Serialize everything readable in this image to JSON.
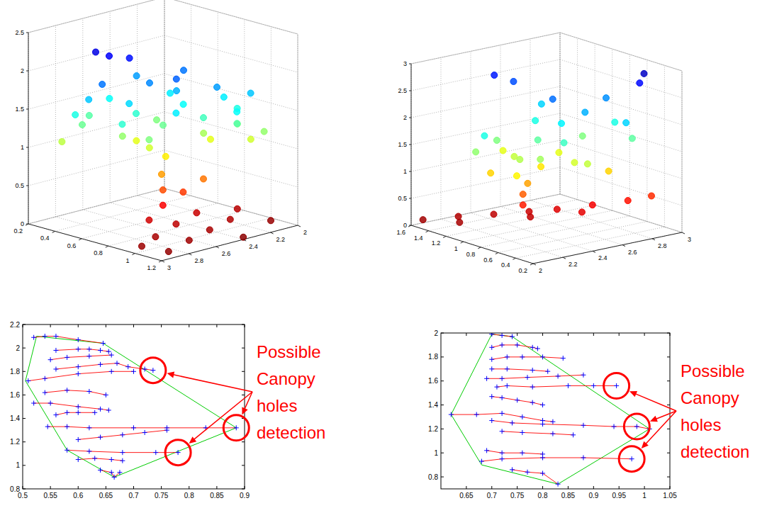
{
  "chart_data": [
    {
      "type": "scatter3d",
      "marker": "o",
      "grid": true,
      "xlim": [
        0.2,
        1.2
      ],
      "ylim": [
        2,
        3
      ],
      "zlim": [
        0,
        2.5
      ],
      "xticks": [
        0.2,
        0.4,
        0.6,
        0.8,
        1,
        1.2
      ],
      "yticks": [
        2,
        2.2,
        2.4,
        2.6,
        2.8,
        3
      ],
      "zticks": [
        0,
        0.5,
        1,
        1.5,
        2,
        2.5
      ],
      "x": [
        1.15,
        1.1,
        1.05,
        1.0,
        1.1,
        0.95,
        0.9,
        0.85,
        0.9,
        1.2,
        1.0,
        0.8,
        0.75,
        0.75,
        0.74,
        0.72,
        0.8,
        0.85,
        0.45,
        0.5,
        0.55,
        0.35,
        0.4,
        0.45,
        0.5,
        0.55,
        0.6,
        0.6,
        0.65,
        0.65,
        0.7,
        0.7,
        0.75,
        0.75,
        0.8,
        0.8,
        0.85,
        0.85,
        0.9,
        0.9,
        0.95,
        0.95,
        1.0,
        1.0,
        1.05,
        0.5,
        0.55,
        0.6,
        0.4,
        0.45,
        0.7,
        0.8,
        0.9,
        0.65,
        1.05,
        0.35,
        0.75
      ],
      "y": [
        2.9,
        2.7,
        2.5,
        2.3,
        2.1,
        2.8,
        2.6,
        2.4,
        2.15,
        2.4,
        2.95,
        2.7,
        2.55,
        2.55,
        2.55,
        2.5,
        2.45,
        2.35,
        2.75,
        2.7,
        2.6,
        2.9,
        2.8,
        2.9,
        2.85,
        2.8,
        2.7,
        2.6,
        2.7,
        2.55,
        2.6,
        2.5,
        2.4,
        2.45,
        2.5,
        2.3,
        2.35,
        2.2,
        2.3,
        2.15,
        2.2,
        2.1,
        2.15,
        2.25,
        2.1,
        2.5,
        2.4,
        2.35,
        2.6,
        2.45,
        2.8,
        2.7,
        2.6,
        2.3,
        2.3,
        2.7,
        2.2
      ],
      "z": [
        0.05,
        0.08,
        0.1,
        0.12,
        0.06,
        0.1,
        0.15,
        0.18,
        0.14,
        0.03,
        0.07,
        0.2,
        0.3,
        0.5,
        0.7,
        0.9,
        0.45,
        0.6,
        2.25,
        2.2,
        2.15,
        1.1,
        1.3,
        1.5,
        1.7,
        1.9,
        1.2,
        1.45,
        1.65,
        1.85,
        1.05,
        1.3,
        1.55,
        1.75,
        1.95,
        1.15,
        1.4,
        1.6,
        1.8,
        1.25,
        1.5,
        1.05,
        1.7,
        1.35,
        1.2,
        1.0,
        1.25,
        1.6,
        1.55,
        1.8,
        1.45,
        1.25,
        1.6,
        1.9,
        1.55,
        1.35,
        1.0
      ]
    },
    {
      "type": "scatter3d",
      "marker": "o",
      "grid": true,
      "xlim": [
        0.2,
        1.6
      ],
      "ylim": [
        2,
        3
      ],
      "zlim": [
        0,
        3
      ],
      "xticks": [
        0.2,
        0.4,
        0.6,
        0.8,
        1,
        1.2,
        1.4,
        1.6
      ],
      "yticks": [
        2,
        2.2,
        2.4,
        2.6,
        2.8,
        3
      ],
      "zticks": [
        0,
        0.5,
        1,
        1.5,
        2,
        2.5,
        3
      ],
      "x": [
        1.55,
        1.4,
        1.25,
        1.1,
        0.95,
        0.8,
        0.65,
        0.55,
        1.3,
        1.0,
        0.75,
        1.0,
        1.0,
        0.98,
        1.2,
        1.1,
        1.0,
        0.9,
        0.8,
        1.3,
        1.2,
        1.1,
        1.0,
        0.9,
        0.8,
        0.7,
        0.6,
        0.7,
        0.6,
        1.4,
        1.3,
        1.1,
        0.9,
        0.8,
        1.0,
        0.5,
        1.45,
        1.5,
        0.6,
        0.55,
        1.2,
        0.95,
        1.05,
        0.75
      ],
      "y": [
        2.05,
        2.2,
        2.35,
        2.5,
        2.6,
        2.75,
        2.9,
        3.0,
        2.15,
        2.45,
        2.65,
        2.4,
        2.4,
        2.42,
        2.3,
        2.4,
        2.5,
        2.6,
        2.7,
        2.4,
        2.6,
        2.7,
        2.8,
        2.3,
        2.4,
        2.5,
        2.6,
        2.8,
        2.9,
        2.5,
        2.7,
        2.2,
        2.9,
        2.9,
        2.6,
        2.8,
        2.6,
        2.5,
        2.95,
        2.95,
        2.2,
        2.35,
        2.55,
        2.6
      ],
      "z": [
        0.1,
        0.15,
        0.18,
        0.22,
        0.28,
        0.35,
        0.42,
        0.5,
        0.12,
        0.2,
        0.3,
        0.45,
        0.65,
        0.85,
        1.0,
        1.3,
        1.6,
        1.9,
        2.1,
        1.5,
        1.8,
        1.2,
        1.5,
        1.1,
        1.4,
        1.7,
        1.3,
        1.0,
        1.6,
        1.2,
        2.0,
        1.8,
        2.2,
        1.8,
        2.3,
        2.0,
        2.4,
        2.55,
        2.6,
        2.8,
        1.45,
        1.35,
        1.05,
        1.25
      ]
    },
    {
      "type": "scatter",
      "marker": "+",
      "line_style": "solid",
      "grid": false,
      "xlim": [
        0.5,
        0.9
      ],
      "ylim": [
        0.8,
        2.2
      ],
      "xticks": [
        0.5,
        0.55,
        0.6,
        0.65,
        0.7,
        0.75,
        0.8,
        0.85,
        0.9
      ],
      "yticks": [
        0.8,
        1,
        1.2,
        1.4,
        1.6,
        1.8,
        2,
        2.2
      ],
      "series": [
        {
          "x": [
            0.52,
            0.54,
            0.56,
            0.6,
            0.645
          ],
          "y": [
            2.09,
            2.1,
            2.1,
            2.07,
            2.04
          ]
        },
        {
          "x": [
            0.56,
            0.6,
            0.62,
            0.64,
            0.655
          ],
          "y": [
            1.98,
            1.99,
            1.99,
            1.98,
            1.97
          ]
        },
        {
          "x": [
            0.55,
            0.58,
            0.62,
            0.66
          ],
          "y": [
            1.9,
            1.92,
            1.93,
            1.94
          ]
        },
        {
          "x": [
            0.56,
            0.6,
            0.64,
            0.67,
            0.69,
            0.72,
            0.735
          ],
          "y": [
            1.82,
            1.84,
            1.86,
            1.87,
            1.84,
            1.82,
            1.81
          ]
        },
        {
          "x": [
            0.51,
            0.54,
            0.6,
            0.66,
            0.7
          ],
          "y": [
            1.72,
            1.74,
            1.78,
            1.8,
            1.8
          ]
        },
        {
          "x": [
            0.54,
            0.58,
            0.62,
            0.65
          ],
          "y": [
            1.62,
            1.64,
            1.63,
            1.6
          ]
        },
        {
          "x": [
            0.52,
            0.55,
            0.6,
            0.64,
            0.655
          ],
          "y": [
            1.53,
            1.53,
            1.5,
            1.48,
            1.47
          ]
        },
        {
          "x": [
            0.56,
            0.58,
            0.6,
            0.63
          ],
          "y": [
            1.43,
            1.45,
            1.45,
            1.45
          ]
        },
        {
          "x": [
            0.545,
            0.58,
            0.62,
            0.7,
            0.76,
            0.83,
            0.885
          ],
          "y": [
            1.33,
            1.33,
            1.32,
            1.32,
            1.32,
            1.32,
            1.32
          ]
        },
        {
          "x": [
            0.6,
            0.64,
            0.68,
            0.72,
            0.76
          ],
          "y": [
            1.22,
            1.24,
            1.26,
            1.28,
            1.3
          ]
        },
        {
          "x": [
            0.58,
            0.62,
            0.68,
            0.74,
            0.78
          ],
          "y": [
            1.13,
            1.12,
            1.11,
            1.11,
            1.11
          ]
        },
        {
          "x": [
            0.6,
            0.63,
            0.66,
            0.68
          ],
          "y": [
            1.05,
            1.06,
            1.05,
            1.04
          ]
        },
        {
          "x": [
            0.64,
            0.66,
            0.665,
            0.675
          ],
          "y": [
            0.96,
            0.94,
            0.9,
            0.94
          ]
        }
      ],
      "hull": {
        "x": [
          0.525,
          0.645,
          0.885,
          0.665,
          0.58,
          0.505
        ],
        "y": [
          2.1,
          2.04,
          1.32,
          0.9,
          1.13,
          1.72
        ],
        "color": "#00cc00"
      },
      "highlights": {
        "x": [
          0.735,
          0.885,
          0.78
        ],
        "y": [
          1.81,
          1.32,
          1.11
        ],
        "color": "#ff0000"
      },
      "annotation": {
        "text": "Possible Canopy holes detection",
        "color": "#ff0000"
      }
    },
    {
      "type": "scatter",
      "marker": "+",
      "line_style": "solid",
      "grid": false,
      "xlim": [
        0.6,
        1.05
      ],
      "ylim": [
        0.7,
        2
      ],
      "xticks": [
        0.65,
        0.7,
        0.75,
        0.8,
        0.85,
        0.9,
        0.95,
        1,
        1.05
      ],
      "yticks": [
        0.8,
        1,
        1.2,
        1.4,
        1.6,
        1.8,
        2
      ],
      "series": [
        {
          "x": [
            0.7,
            0.72,
            0.74
          ],
          "y": [
            1.99,
            1.98,
            1.97
          ]
        },
        {
          "x": [
            0.7,
            0.72,
            0.75,
            0.78,
            0.79
          ],
          "y": [
            1.88,
            1.9,
            1.9,
            1.88,
            1.87
          ]
        },
        {
          "x": [
            0.7,
            0.73,
            0.76,
            0.8,
            0.84
          ],
          "y": [
            1.78,
            1.8,
            1.8,
            1.8,
            1.79
          ]
        },
        {
          "x": [
            0.7,
            0.73,
            0.78,
            0.81
          ],
          "y": [
            1.7,
            1.7,
            1.69,
            1.68
          ]
        },
        {
          "x": [
            0.69,
            0.72,
            0.77,
            0.83,
            0.88
          ],
          "y": [
            1.62,
            1.62,
            1.63,
            1.64,
            1.65
          ]
        },
        {
          "x": [
            0.71,
            0.73,
            0.78,
            0.85,
            0.9,
            0.945
          ],
          "y": [
            1.55,
            1.56,
            1.55,
            1.56,
            1.56,
            1.56
          ]
        },
        {
          "x": [
            0.7,
            0.72,
            0.75,
            0.78,
            0.8
          ],
          "y": [
            1.47,
            1.46,
            1.44,
            1.42,
            1.4
          ]
        },
        {
          "x": [
            0.62,
            0.67,
            0.72,
            0.76,
            0.8,
            0.82
          ],
          "y": [
            1.32,
            1.32,
            1.33,
            1.3,
            1.27,
            1.26
          ]
        },
        {
          "x": [
            0.7,
            0.74,
            0.8,
            0.88,
            0.94,
            0.985,
            1.01
          ],
          "y": [
            1.27,
            1.25,
            1.24,
            1.23,
            1.22,
            1.22,
            1.2
          ]
        },
        {
          "x": [
            0.72,
            0.76,
            0.82,
            0.86
          ],
          "y": [
            1.18,
            1.17,
            1.16,
            1.15
          ]
        },
        {
          "x": [
            0.69,
            0.72,
            0.76,
            0.8
          ],
          "y": [
            1.02,
            1.0,
            1.0,
            0.99
          ]
        },
        {
          "x": [
            0.68,
            0.72,
            0.8,
            0.88,
            0.975
          ],
          "y": [
            0.93,
            0.95,
            0.96,
            0.96,
            0.95
          ]
        },
        {
          "x": [
            0.74,
            0.77,
            0.8,
            0.83
          ],
          "y": [
            0.86,
            0.84,
            0.83,
            0.74
          ]
        }
      ],
      "hull": {
        "x": [
          0.7,
          0.74,
          1.01,
          0.83,
          0.68,
          0.62
        ],
        "y": [
          1.99,
          1.97,
          1.2,
          0.74,
          0.9,
          1.32
        ],
        "color": "#00cc00"
      },
      "highlights": {
        "x": [
          0.945,
          0.985,
          0.975
        ],
        "y": [
          1.56,
          1.22,
          0.95
        ],
        "color": "#ff0000"
      },
      "annotation": {
        "text": "Possible Canopy holes detection",
        "color": "#ff0000"
      }
    }
  ]
}
